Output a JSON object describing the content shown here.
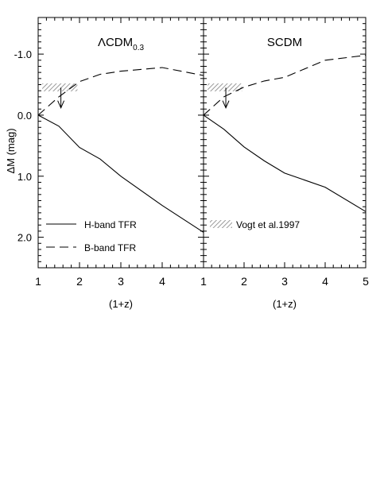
{
  "chart_data": [
    {
      "type": "line",
      "title": "ΛCDM",
      "title_subscript": "0.3",
      "xlabel": "(1+z)",
      "ylabel": "ΔM  (mag)",
      "xlim": [
        1,
        5
      ],
      "ylim": [
        2.5,
        -1.6
      ],
      "x_ticks": [
        1,
        2,
        3,
        4
      ],
      "y_ticks": [
        -1.0,
        0.0,
        1.0,
        2.0
      ],
      "y_tick_labels": [
        "-1.0",
        "0.0",
        "1.0",
        "2.0"
      ],
      "series": [
        {
          "name": "H-band TFR",
          "style": "solid",
          "x": [
            1,
            1.5,
            2,
            2.5,
            3,
            4,
            5
          ],
          "y": [
            0.0,
            0.18,
            0.53,
            0.72,
            1.0,
            1.48,
            1.92
          ]
        },
        {
          "name": "B-band TFR",
          "style": "dashed",
          "x": [
            1,
            1.5,
            2,
            2.5,
            3,
            4,
            5
          ],
          "y": [
            0.0,
            -0.3,
            -0.55,
            -0.67,
            -0.72,
            -0.78,
            -0.65
          ]
        }
      ],
      "vogt_box": {
        "x": [
          1.1,
          1.95
        ],
        "y": [
          -0.52,
          -0.39
        ]
      },
      "arrow": {
        "x": 1.55,
        "from": -0.45,
        "to": -0.12
      },
      "legend": [
        "H-band TFR",
        "B-band TFR"
      ],
      "legend_placement": "bottom-left"
    },
    {
      "type": "line",
      "title": "SCDM",
      "xlabel": "(1+z)",
      "xlim": [
        1,
        5
      ],
      "ylim": [
        2.5,
        -1.6
      ],
      "x_ticks": [
        1,
        2,
        3,
        4,
        5
      ],
      "series": [
        {
          "name": "H-band TFR",
          "style": "solid",
          "x": [
            1,
            1.5,
            2,
            2.5,
            3,
            4,
            5
          ],
          "y": [
            0.0,
            0.23,
            0.52,
            0.75,
            0.95,
            1.18,
            1.58
          ]
        },
        {
          "name": "B-band TFR",
          "style": "dashed",
          "x": [
            1,
            1.5,
            2,
            2.5,
            3,
            4,
            5
          ],
          "y": [
            0.0,
            -0.3,
            -0.46,
            -0.56,
            -0.62,
            -0.9,
            -0.98
          ]
        }
      ],
      "vogt_box": {
        "x": [
          1.1,
          1.95
        ],
        "y": [
          -0.52,
          -0.39
        ]
      },
      "arrow": {
        "x": 1.55,
        "from": -0.45,
        "to": -0.12
      },
      "legend": [
        "Vogt et al.1997"
      ],
      "legend_placement": "bottom-left"
    }
  ],
  "colors": {
    "ink": "#000000",
    "hatch": "#9a9a9a"
  }
}
